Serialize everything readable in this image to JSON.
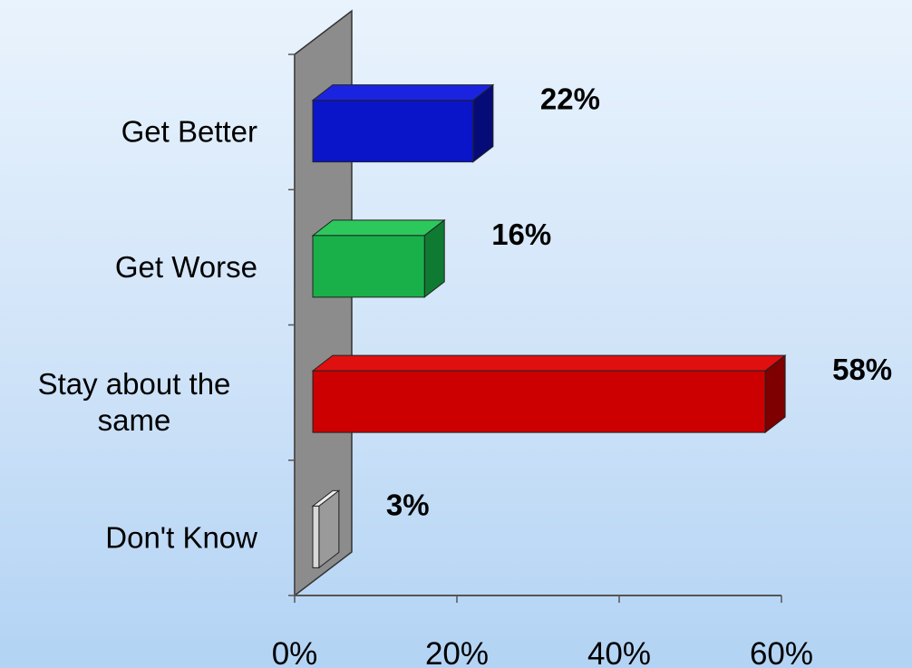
{
  "chart_data": {
    "type": "bar",
    "orientation": "horizontal",
    "style": "3d",
    "categories": [
      "Get Better",
      "Get Worse",
      "Stay about the same",
      "Don't Know"
    ],
    "category_lines": [
      [
        "Get Better"
      ],
      [
        "Get Worse"
      ],
      [
        "Stay about the",
        "same"
      ],
      [
        "Don't Know"
      ]
    ],
    "values": [
      22,
      16,
      58,
      3
    ],
    "data_labels": [
      "22%",
      "16%",
      "58%",
      "3%"
    ],
    "xlim": [
      0,
      60
    ],
    "x_ticks": [
      0,
      20,
      40,
      60
    ],
    "x_tick_labels": [
      "0%",
      "20%",
      "40%",
      "60%"
    ],
    "grid": false,
    "legend": "none",
    "colors": {
      "front": [
        "#0a14c8",
        "#19b04a",
        "#cc0000",
        "#d8d8d8"
      ],
      "top": [
        "#1a24e0",
        "#2cc85c",
        "#e01010",
        "#ececec"
      ],
      "side": [
        "#050c78",
        "#0e7a32",
        "#7e0000",
        "#9a9a9a"
      ],
      "wall": "#8c8c8c",
      "wall_side": "#a8a8a8"
    }
  }
}
